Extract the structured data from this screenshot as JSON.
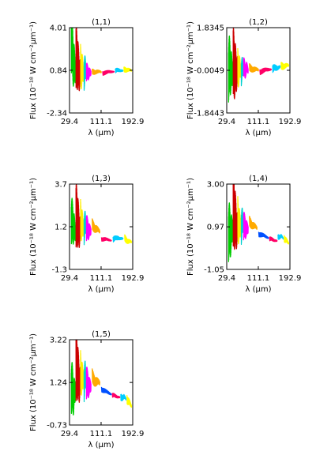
{
  "colors": [
    "#00cc00",
    "#cc0000",
    "#ffee00",
    "#00d0d0",
    "#ff00ff",
    "#ffaa00",
    "#0050ff",
    "#ff0066",
    "#00ccff",
    "#ffff00"
  ],
  "chart_data": [
    {
      "type": "line",
      "title": "(1,1)",
      "xlabel": "λ (μm)",
      "ylabel": "Flux (10⁻¹⁸ W cm⁻²μm⁻¹)",
      "xlim": [
        29.4,
        192.9
      ],
      "ylim": [
        -2.34,
        4.01
      ],
      "xticks": [
        "29.4",
        "111.1",
        "192.9"
      ],
      "yticks": [
        {
          "value": 4.01,
          "label": "4.01"
        },
        {
          "value": 0.84,
          "label": "0.84"
        },
        {
          "value": -2.34,
          "label": "-2.34"
        }
      ],
      "series": [
        {
          "color": "#00cc00",
          "amp": 2.9,
          "x": [
            34,
            37,
            40,
            43,
            46
          ],
          "y": [
            3.6,
            2.2,
            1.4,
            1.0,
            0.9
          ]
        },
        {
          "color": "#cc0000",
          "amp": 2.9,
          "x": [
            46,
            49,
            52,
            55,
            58
          ],
          "y": [
            1.3,
            1.8,
            1.0,
            0.6,
            0.8
          ]
        },
        {
          "color": "#ffee00",
          "amp": 1.8,
          "x": [
            58,
            61,
            64,
            67
          ],
          "y": [
            1.1,
            0.9,
            0.8,
            0.7
          ]
        },
        {
          "color": "#00d0d0",
          "amp": 1.5,
          "x": [
            67,
            70,
            73
          ],
          "y": [
            0.8,
            0.9,
            0.7
          ]
        },
        {
          "color": "#ff00ff",
          "amp": 0.8,
          "x": [
            73,
            77,
            81,
            85
          ],
          "y": [
            0.6,
            0.7,
            0.6,
            0.7
          ]
        },
        {
          "color": "#ffaa00",
          "amp": 0.25,
          "x": [
            88,
            100,
            112
          ],
          "y": [
            0.7,
            0.75,
            0.7
          ]
        },
        {
          "color": "#ff0066",
          "amp": 0.2,
          "x": [
            115,
            130,
            145
          ],
          "y": [
            0.65,
            0.7,
            0.75
          ]
        },
        {
          "color": "#00ccff",
          "amp": 0.2,
          "x": [
            148,
            158,
            168
          ],
          "y": [
            0.8,
            0.85,
            0.8
          ]
        },
        {
          "color": "#ffff00",
          "amp": 0.25,
          "x": [
            170,
            180,
            190
          ],
          "y": [
            0.85,
            0.9,
            0.8
          ]
        }
      ]
    },
    {
      "type": "line",
      "title": "(1,2)",
      "xlabel": "λ (μm)",
      "ylabel": "Flux (10⁻¹⁸ W cm⁻²μm⁻¹)",
      "xlim": [
        29.4,
        192.9
      ],
      "ylim": [
        -1.8443,
        1.8345
      ],
      "xticks": [
        "29.4",
        "111.1",
        "192.9"
      ],
      "yticks": [
        {
          "value": 1.8345,
          "label": "1.8345"
        },
        {
          "value": -0.0049,
          "label": "-0.0049"
        },
        {
          "value": -1.8443,
          "label": "-1.8443"
        }
      ],
      "series": [
        {
          "color": "#00cc00",
          "amp": 1.6,
          "x": [
            34,
            37,
            40,
            43,
            46
          ],
          "y": [
            0.2,
            0.1,
            0.0,
            -0.1,
            0.0
          ]
        },
        {
          "color": "#cc0000",
          "amp": 1.8,
          "x": [
            46,
            49,
            52,
            55,
            58
          ],
          "y": [
            0.1,
            0.2,
            0.0,
            -0.1,
            0.1
          ]
        },
        {
          "color": "#ffee00",
          "amp": 0.9,
          "x": [
            58,
            61,
            64,
            67
          ],
          "y": [
            0.1,
            0.0,
            0.1,
            0.0
          ]
        },
        {
          "color": "#00d0d0",
          "amp": 0.7,
          "x": [
            67,
            70,
            73
          ],
          "y": [
            0.0,
            0.1,
            0.0
          ]
        },
        {
          "color": "#ff00ff",
          "amp": 0.5,
          "x": [
            73,
            77,
            81,
            85
          ],
          "y": [
            0.1,
            0.0,
            0.1,
            0.0
          ]
        },
        {
          "color": "#ffaa00",
          "amp": 0.2,
          "x": [
            88,
            100,
            112
          ],
          "y": [
            0.1,
            0.05,
            0.0
          ]
        },
        {
          "color": "#ff0066",
          "amp": 0.15,
          "x": [
            115,
            130,
            145
          ],
          "y": [
            -0.05,
            0.0,
            0.05
          ]
        },
        {
          "color": "#00ccff",
          "amp": 0.2,
          "x": [
            148,
            158,
            168
          ],
          "y": [
            0.05,
            0.1,
            0.15
          ]
        },
        {
          "color": "#ffff00",
          "amp": 0.2,
          "x": [
            170,
            180,
            190
          ],
          "y": [
            0.15,
            0.2,
            0.2
          ]
        }
      ]
    },
    {
      "type": "line",
      "title": "(1,3)",
      "xlabel": "λ (μm)",
      "ylabel": "Flux (10⁻¹⁸ W cm⁻²μm⁻¹)",
      "xlim": [
        29.4,
        192.9
      ],
      "ylim": [
        -1.3,
        3.7
      ],
      "xticks": [
        "29.4",
        "111.1",
        "192.9"
      ],
      "yticks": [
        {
          "value": 3.7,
          "label": "3.7"
        },
        {
          "value": 1.2,
          "label": "1.2"
        },
        {
          "value": -1.3,
          "label": "-1.3"
        }
      ],
      "series": [
        {
          "color": "#00cc00",
          "amp": 1.6,
          "x": [
            34,
            37,
            40,
            43,
            46
          ],
          "y": [
            1.8,
            1.4,
            1.2,
            1.0,
            0.9
          ]
        },
        {
          "color": "#cc0000",
          "amp": 2.3,
          "x": [
            46,
            49,
            52,
            55,
            58
          ],
          "y": [
            1.4,
            1.9,
            1.3,
            1.0,
            1.1
          ]
        },
        {
          "color": "#ffee00",
          "amp": 1.3,
          "x": [
            58,
            61,
            64,
            67
          ],
          "y": [
            1.6,
            1.4,
            1.2,
            1.3
          ]
        },
        {
          "color": "#00d0d0",
          "amp": 1.1,
          "x": [
            67,
            70,
            73
          ],
          "y": [
            1.2,
            1.4,
            1.1
          ]
        },
        {
          "color": "#ff00ff",
          "amp": 0.9,
          "x": [
            73,
            77,
            81,
            85
          ],
          "y": [
            1.0,
            1.1,
            0.9,
            1.0
          ]
        },
        {
          "color": "#ffaa00",
          "amp": 0.4,
          "x": [
            88,
            98,
            108
          ],
          "y": [
            1.3,
            1.1,
            0.9
          ]
        },
        {
          "color": "#ff0066",
          "amp": 0.15,
          "x": [
            112,
            125,
            138
          ],
          "y": [
            0.5,
            0.45,
            0.4
          ]
        },
        {
          "color": "#00ccff",
          "amp": 0.2,
          "x": [
            142,
            155,
            168
          ],
          "y": [
            0.45,
            0.55,
            0.5
          ]
        },
        {
          "color": "#ffff00",
          "amp": 0.25,
          "x": [
            172,
            182,
            190
          ],
          "y": [
            0.5,
            0.35,
            0.3
          ]
        }
      ]
    },
    {
      "type": "line",
      "title": "(1,4)",
      "xlabel": "λ (μm)",
      "ylabel": "Flux (10⁻¹⁸ W cm⁻²μm⁻¹)",
      "xlim": [
        29.4,
        192.9
      ],
      "ylim": [
        -1.05,
        3.0
      ],
      "xticks": [
        "29.4",
        "111.1",
        "192.9"
      ],
      "yticks": [
        {
          "value": 3.0,
          "label": "3.00"
        },
        {
          "value": 0.97,
          "label": "0.97"
        },
        {
          "value": -1.05,
          "label": "-1.05"
        }
      ],
      "series": [
        {
          "color": "#00cc00",
          "amp": 1.6,
          "x": [
            34,
            37,
            40,
            43,
            46
          ],
          "y": [
            0.9,
            0.7,
            0.6,
            0.8,
            1.0
          ]
        },
        {
          "color": "#cc0000",
          "amp": 2.2,
          "x": [
            46,
            49,
            52,
            55,
            58
          ],
          "y": [
            1.4,
            1.7,
            1.2,
            0.9,
            1.0
          ]
        },
        {
          "color": "#ffee00",
          "amp": 1.2,
          "x": [
            58,
            61,
            64,
            67
          ],
          "y": [
            1.3,
            1.1,
            1.0,
            1.1
          ]
        },
        {
          "color": "#00d0d0",
          "amp": 1.0,
          "x": [
            67,
            70,
            73
          ],
          "y": [
            1.1,
            1.2,
            1.0
          ]
        },
        {
          "color": "#ff00ff",
          "amp": 0.8,
          "x": [
            73,
            77,
            81,
            85
          ],
          "y": [
            0.9,
            1.0,
            0.85,
            0.9
          ]
        },
        {
          "color": "#ffaa00",
          "amp": 0.3,
          "x": [
            88,
            98,
            108
          ],
          "y": [
            1.2,
            1.05,
            0.9
          ]
        },
        {
          "color": "#0050ff",
          "amp": 0.15,
          "x": [
            112,
            125,
            138
          ],
          "y": [
            0.65,
            0.55,
            0.45
          ]
        },
        {
          "color": "#ff0066",
          "amp": 0.12,
          "x": [
            140,
            150,
            160
          ],
          "y": [
            0.4,
            0.35,
            0.3
          ]
        },
        {
          "color": "#00ccff",
          "amp": 0.15,
          "x": [
            162,
            170,
            176
          ],
          "y": [
            0.45,
            0.55,
            0.4
          ]
        },
        {
          "color": "#ffff00",
          "amp": 0.2,
          "x": [
            178,
            184,
            190
          ],
          "y": [
            0.45,
            0.3,
            0.2
          ]
        }
      ]
    },
    {
      "type": "line",
      "title": "(1,5)",
      "xlabel": "λ (μm)",
      "ylabel": "Flux (10⁻¹⁸ W cm⁻²μm⁻¹)",
      "xlim": [
        29.4,
        192.9
      ],
      "ylim": [
        -0.73,
        3.22
      ],
      "xticks": [
        "29.4",
        "111.1",
        "192.9"
      ],
      "yticks": [
        {
          "value": 3.22,
          "label": "3.22"
        },
        {
          "value": 1.24,
          "label": "1.24"
        },
        {
          "value": -0.73,
          "label": "-0.73"
        }
      ],
      "series": [
        {
          "color": "#00cc00",
          "amp": 1.4,
          "x": [
            34,
            37,
            40,
            43,
            46
          ],
          "y": [
            1.2,
            0.9,
            0.6,
            0.8,
            1.0
          ]
        },
        {
          "color": "#cc0000",
          "amp": 2.0,
          "x": [
            46,
            49,
            52,
            55,
            58
          ],
          "y": [
            1.6,
            2.1,
            1.5,
            1.2,
            1.4
          ]
        },
        {
          "color": "#ffee00",
          "amp": 1.1,
          "x": [
            58,
            61,
            64,
            67
          ],
          "y": [
            1.7,
            1.5,
            1.4,
            1.6
          ]
        },
        {
          "color": "#00d0d0",
          "amp": 1.0,
          "x": [
            67,
            70,
            73
          ],
          "y": [
            1.3,
            1.6,
            1.2
          ]
        },
        {
          "color": "#ff00ff",
          "amp": 0.9,
          "x": [
            73,
            77,
            81,
            85
          ],
          "y": [
            1.1,
            1.2,
            1.0,
            1.1
          ]
        },
        {
          "color": "#ffaa00",
          "amp": 0.4,
          "x": [
            88,
            98,
            108
          ],
          "y": [
            1.5,
            1.3,
            1.2
          ]
        },
        {
          "color": "#0050ff",
          "amp": 0.15,
          "x": [
            112,
            125,
            138
          ],
          "y": [
            0.95,
            0.8,
            0.7
          ]
        },
        {
          "color": "#ff0066",
          "amp": 0.12,
          "x": [
            140,
            150,
            160
          ],
          "y": [
            0.65,
            0.6,
            0.55
          ]
        },
        {
          "color": "#00ccff",
          "amp": 0.2,
          "x": [
            162,
            170,
            176
          ],
          "y": [
            0.5,
            0.6,
            0.45
          ]
        },
        {
          "color": "#ffff00",
          "amp": 0.25,
          "x": [
            178,
            184,
            190
          ],
          "y": [
            0.5,
            0.3,
            0.15
          ]
        }
      ]
    }
  ]
}
